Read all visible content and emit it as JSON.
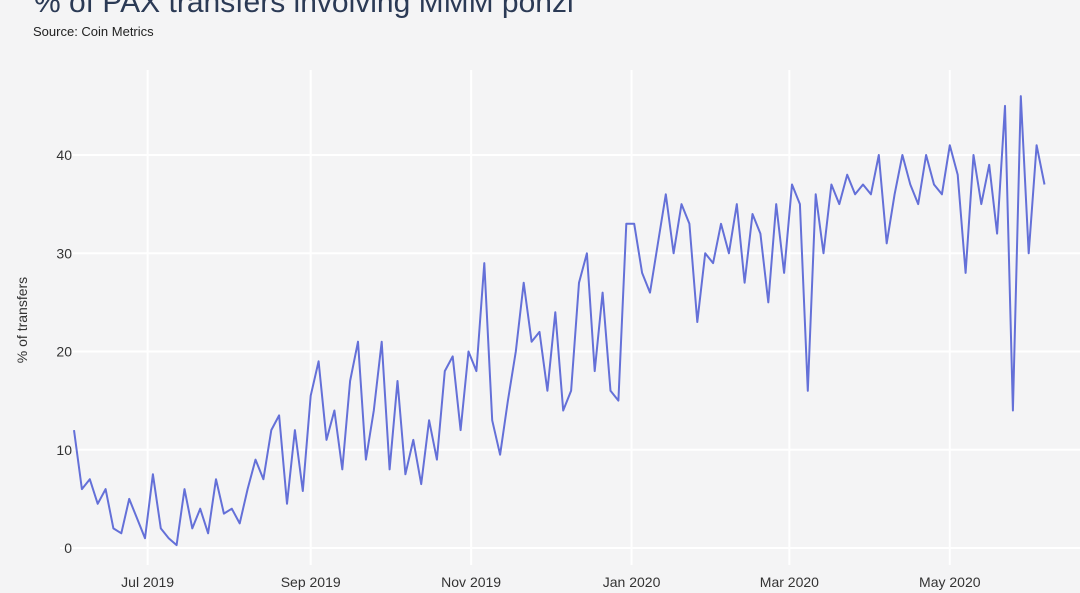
{
  "chart_data": {
    "type": "line",
    "title": "% of PAX transfers involving MMM ponzi",
    "subtitle": "Source: Coin Metrics",
    "xlabel": "",
    "ylabel": "% of transfers",
    "ylim": [
      0,
      46
    ],
    "yticks": [
      0,
      10,
      20,
      30,
      40
    ],
    "xticks": [
      {
        "label": "Jul 2019",
        "date": "2019-07-01"
      },
      {
        "label": "Sep 2019",
        "date": "2019-09-01"
      },
      {
        "label": "Nov 2019",
        "date": "2019-11-01"
      },
      {
        "label": "Jan 2020",
        "date": "2020-01-01"
      },
      {
        "label": "Mar 2020",
        "date": "2020-03-01"
      },
      {
        "label": "May 2020",
        "date": "2020-05-01"
      }
    ],
    "grid": true,
    "series": [
      {
        "name": "% of transfers",
        "color": "#6470d8",
        "start_date": "2019-06-03",
        "step_days": 3,
        "values": [
          12,
          6,
          7,
          4.5,
          6,
          2,
          1.5,
          5,
          3,
          1,
          7.5,
          2,
          1,
          0.3,
          6,
          2,
          4,
          1.5,
          7,
          3.5,
          4,
          2.5,
          6,
          9,
          7,
          12,
          13.5,
          4.5,
          12,
          5.8,
          15.5,
          19,
          11,
          14,
          8,
          17,
          21,
          9,
          14,
          21,
          8,
          17,
          7.5,
          11,
          6.5,
          13,
          9,
          18,
          19.5,
          12,
          20,
          18,
          29,
          13,
          9.5,
          15,
          20,
          27,
          21,
          22,
          16,
          24,
          14,
          16,
          27,
          30,
          18,
          26,
          16,
          15,
          33,
          33,
          28,
          26,
          31,
          36,
          30,
          35,
          33,
          23,
          30,
          29,
          33,
          30,
          35,
          27,
          34,
          32,
          25,
          35,
          28,
          37,
          35,
          16,
          36,
          30,
          37,
          35,
          38,
          36,
          37,
          36,
          40,
          31,
          36,
          40,
          37,
          35,
          40,
          37,
          36,
          41,
          38,
          28,
          40,
          35,
          39,
          32,
          45,
          14,
          46,
          30,
          41,
          37
        ]
      }
    ]
  }
}
